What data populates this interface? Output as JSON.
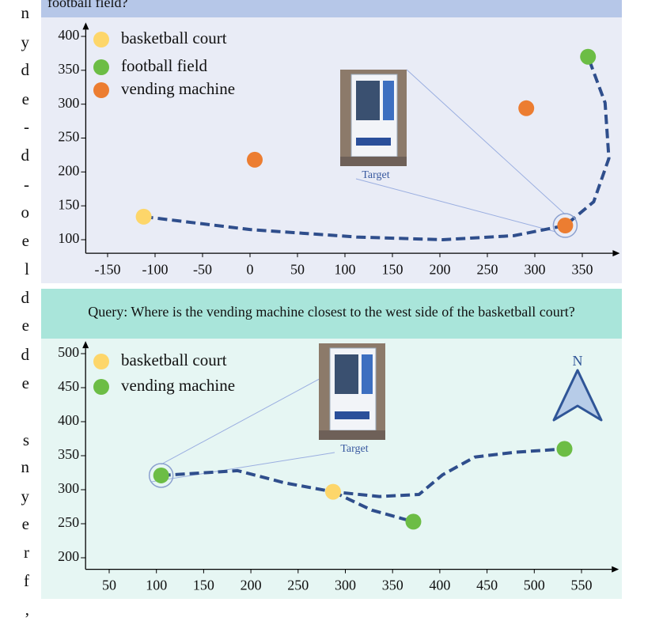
{
  "margin_text": [
    "n",
    "y",
    "d",
    "e",
    "-",
    "d",
    "-",
    "o",
    "e",
    "l",
    "d",
    "e",
    "d",
    "e",
    "s",
    "n",
    "y",
    "e",
    "r",
    "f",
    ","
  ],
  "chart_data": [
    {
      "type": "scatter",
      "title": "football field?",
      "series": [
        {
          "name": "basketball court",
          "color": "#fdd66a",
          "x": [
            -112
          ],
          "y": [
            134
          ]
        },
        {
          "name": "football field",
          "color": "#6cbd45",
          "x": [
            356
          ],
          "y": [
            370
          ]
        },
        {
          "name": "vending machine",
          "color": "#ec7d31",
          "x": [
            5,
            291,
            332
          ],
          "y": [
            218,
            294,
            121
          ]
        }
      ],
      "routes": [
        {
          "x": [
            -112,
            0,
            112,
            203,
            278,
            332,
            362,
            378,
            374,
            356
          ],
          "y": [
            134,
            115,
            104,
            100,
            106,
            121,
            156,
            220,
            302,
            370
          ]
        }
      ],
      "annotation": "Target",
      "xlim": [
        -173,
        382
      ],
      "ylim": [
        80,
        410
      ],
      "xticks": [
        -150,
        -100,
        -50,
        0,
        50,
        100,
        150,
        200,
        250,
        300,
        350
      ],
      "yticks": [
        100,
        150,
        200,
        250,
        300,
        350,
        400
      ]
    },
    {
      "type": "scatter",
      "title": "Query: Where is the vending machine closest to the west side of the basketball court?",
      "series": [
        {
          "name": "basketball court",
          "color": "#fdd66a",
          "x": [
            287
          ],
          "y": [
            297
          ]
        },
        {
          "name": "vending machine",
          "color": "#6cbd45",
          "x": [
            105,
            372,
            532
          ],
          "y": [
            321,
            253,
            360
          ]
        }
      ],
      "routes": [
        {
          "x": [
            105,
            186,
            236,
            287,
            336,
            378,
            403,
            437,
            479,
            532
          ],
          "y": [
            321,
            328,
            310,
            297,
            290,
            293,
            322,
            348,
            355,
            360
          ]
        },
        {
          "x": [
            287,
            328,
            372
          ],
          "y": [
            297,
            270,
            253
          ]
        }
      ],
      "annotation": "Target",
      "compass": "N",
      "xlim": [
        25,
        582
      ],
      "ylim": [
        183,
        508
      ],
      "xticks": [
        50,
        100,
        150,
        200,
        250,
        300,
        350,
        400,
        450,
        500,
        550
      ],
      "yticks": [
        200,
        250,
        300,
        350,
        400,
        450,
        500
      ]
    }
  ]
}
